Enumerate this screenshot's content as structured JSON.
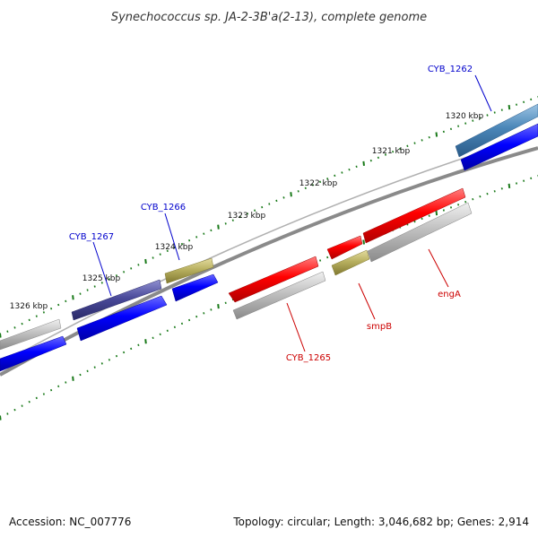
{
  "title": "Synechococcus sp. JA-2-3B'a(2-13), complete genome",
  "footer": {
    "accession": "Accession: NC_007776",
    "summary": "Topology: circular; Length: 3,046,682 bp; Genes: 2,914"
  },
  "ticks": [
    "1320 kbp",
    "1321 kbp",
    "1322 kbp",
    "1323 kbp",
    "1324 kbp",
    "1325 kbp",
    "1326 kbp"
  ],
  "gene_labels": {
    "cyb_1262": "CYB_1262",
    "cyb_1266": "CYB_1266",
    "cyb_1267": "CYB_1267",
    "cyb_1265": "CYB_1265",
    "smpb": "smpB",
    "enga": "engA"
  },
  "colors": {
    "cds_forward": "#0000ff",
    "cds_reverse": "#ff0000",
    "gene_grey": "#b0b0b0",
    "olive": "#b8b060",
    "dark_blue": "#4a4a9a",
    "steel_blue": "#4a86b8",
    "tick_green": "#1a7a1a",
    "backbone": "#777777",
    "label_blue": "#0000cc",
    "label_red": "#cc0000"
  }
}
